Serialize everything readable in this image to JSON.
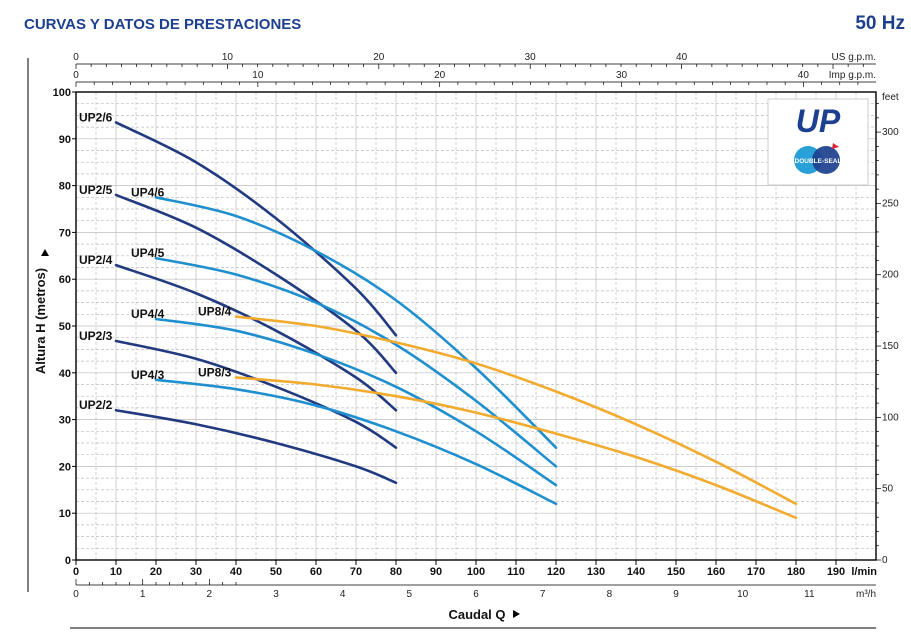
{
  "header": {
    "title": "CURVAS Y DATOS DE PRESTACIONES",
    "frequency": "50 Hz"
  },
  "logo": {
    "mark": "UP",
    "badge": "DOUBLE-SEAL",
    "colors": {
      "mark": "#1c3f8f",
      "badge_left": "#2aa0d8",
      "badge_right": "#1c3f8f",
      "accent": "#e0262e"
    }
  },
  "colors": {
    "up2": "#213a80",
    "up4": "#1f8fcf",
    "up8": "#f2ab2f",
    "grid": "#bdbdbd",
    "axis": "#000000",
    "title": "#1c3f8f"
  },
  "chart_data": {
    "type": "line",
    "xlabel": "Caudal Q",
    "ylabel": "Altura H (metros)",
    "x_unit": "l/min",
    "xlim": [
      0,
      200
    ],
    "ylim": [
      0,
      100
    ],
    "x_ticks": [
      0,
      10,
      20,
      30,
      40,
      50,
      60,
      70,
      80,
      90,
      100,
      110,
      120,
      130,
      140,
      150,
      160,
      170,
      180,
      190
    ],
    "y_ticks": [
      0,
      10,
      20,
      30,
      40,
      50,
      60,
      70,
      80,
      90,
      100
    ],
    "grid": true,
    "secondary_axes": {
      "us_gpm": {
        "label": "US g.p.m.",
        "ticks": [
          0,
          10,
          20,
          30,
          40
        ]
      },
      "imp_gpm": {
        "label": "Imp g.p.m.",
        "ticks": [
          0,
          10,
          20,
          30,
          40
        ]
      },
      "m3h": {
        "label": "m³/h",
        "ticks": [
          0,
          1,
          2,
          3,
          4,
          5,
          6,
          7,
          8,
          9,
          10,
          11
        ]
      },
      "feet": {
        "label": "feet",
        "ticks": [
          0,
          50,
          100,
          150,
          200,
          250,
          300
        ]
      }
    },
    "series": [
      {
        "name": "UP2/6",
        "group": "up2",
        "x": [
          10,
          30,
          50,
          70,
          80
        ],
        "y": [
          93.5,
          85,
          73,
          58,
          48
        ]
      },
      {
        "name": "UP2/5",
        "group": "up2",
        "x": [
          10,
          30,
          50,
          70,
          80
        ],
        "y": [
          78,
          71,
          61,
          49,
          40
        ]
      },
      {
        "name": "UP2/4",
        "group": "up2",
        "x": [
          10,
          30,
          50,
          70,
          80
        ],
        "y": [
          63,
          57,
          49,
          39,
          32
        ]
      },
      {
        "name": "UP2/3",
        "group": "up2",
        "x": [
          10,
          30,
          50,
          70,
          80
        ],
        "y": [
          46.8,
          43,
          37,
          29.5,
          24
        ]
      },
      {
        "name": "UP2/2",
        "group": "up2",
        "x": [
          10,
          30,
          50,
          70,
          80
        ],
        "y": [
          32,
          29,
          25,
          20,
          16.5
        ]
      },
      {
        "name": "UP4/6",
        "group": "up4",
        "x": [
          20,
          40,
          60,
          80,
          100,
          120
        ],
        "y": [
          77.5,
          73.5,
          66,
          55.5,
          41,
          24
        ]
      },
      {
        "name": "UP4/5",
        "group": "up4",
        "x": [
          20,
          40,
          60,
          80,
          100,
          120
        ],
        "y": [
          64.5,
          61,
          55,
          46,
          34,
          20
        ]
      },
      {
        "name": "UP4/4",
        "group": "up4",
        "x": [
          20,
          40,
          60,
          80,
          100,
          120
        ],
        "y": [
          51.5,
          49,
          44,
          37,
          27.5,
          16
        ]
      },
      {
        "name": "UP4/3",
        "group": "up4",
        "x": [
          20,
          40,
          60,
          80,
          100,
          120
        ],
        "y": [
          38.5,
          36.5,
          33,
          27.5,
          20.5,
          12
        ]
      },
      {
        "name": "UP8/4",
        "group": "up8",
        "x": [
          40,
          60,
          80,
          100,
          120,
          140,
          160,
          180
        ],
        "y": [
          52,
          50,
          46.5,
          42,
          36,
          29,
          21,
          12
        ]
      },
      {
        "name": "UP8/3",
        "group": "up8",
        "x": [
          40,
          60,
          80,
          100,
          120,
          140,
          160,
          180
        ],
        "y": [
          39,
          37.5,
          35,
          31.5,
          27,
          22,
          16,
          9
        ]
      }
    ]
  }
}
